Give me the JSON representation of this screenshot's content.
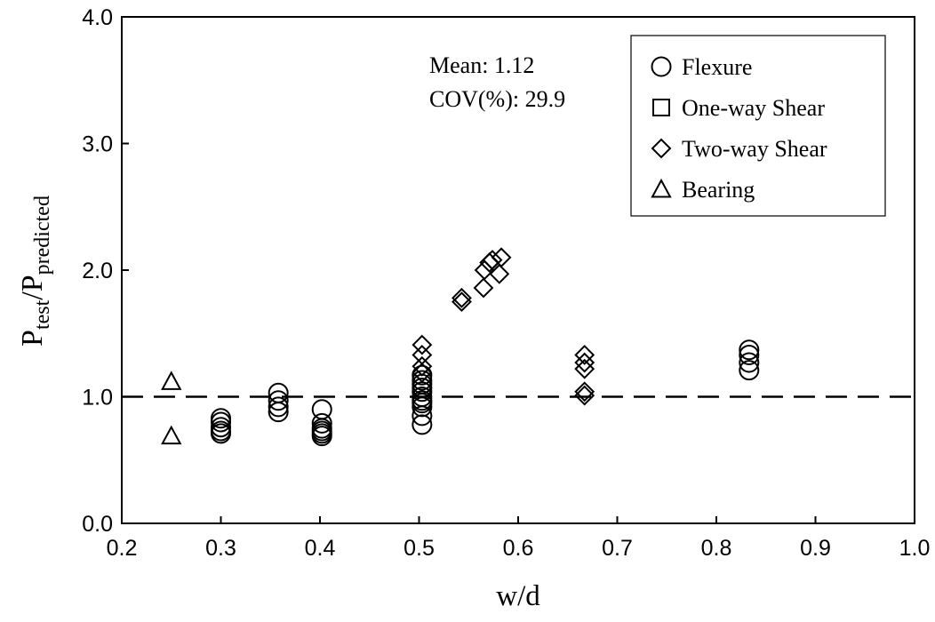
{
  "chart_data": {
    "type": "scatter",
    "xlabel": "w/d",
    "ylabel": {
      "main1": "P",
      "sub1": "test",
      "slash": "/P",
      "sub2": "predicted"
    },
    "xlim": [
      0.2,
      1.0
    ],
    "ylim": [
      0.0,
      4.0
    ],
    "x_ticks": [
      "0.2",
      "0.3",
      "0.4",
      "0.5",
      "0.6",
      "0.7",
      "0.8",
      "0.9",
      "1.0"
    ],
    "y_ticks": [
      "0.0",
      "1.0",
      "2.0",
      "3.0",
      "4.0"
    ],
    "grid": false,
    "reference_line": {
      "y": 1.0,
      "style": "dashed"
    },
    "annotations": {
      "mean": "Mean: 1.12",
      "cov": "COV(%): 29.9"
    },
    "legend": {
      "placement": "top-right",
      "entries": [
        {
          "label": "Flexure",
          "marker": "circle"
        },
        {
          "label": "One-way Shear",
          "marker": "square"
        },
        {
          "label": "Two-way Shear",
          "marker": "diamond"
        },
        {
          "label": "Bearing",
          "marker": "triangle"
        }
      ]
    },
    "series": [
      {
        "name": "Flexure",
        "marker": "circle",
        "points": [
          [
            0.3,
            0.83
          ],
          [
            0.3,
            0.8
          ],
          [
            0.3,
            0.76
          ],
          [
            0.3,
            0.73
          ],
          [
            0.3,
            0.71
          ],
          [
            0.358,
            1.03
          ],
          [
            0.358,
            0.97
          ],
          [
            0.358,
            0.92
          ],
          [
            0.358,
            0.88
          ],
          [
            0.402,
            0.9
          ],
          [
            0.402,
            0.79
          ],
          [
            0.402,
            0.75
          ],
          [
            0.402,
            0.73
          ],
          [
            0.402,
            0.71
          ],
          [
            0.402,
            0.69
          ],
          [
            0.503,
            1.17
          ],
          [
            0.503,
            1.13
          ],
          [
            0.503,
            1.1
          ],
          [
            0.503,
            1.07
          ],
          [
            0.503,
            1.04
          ],
          [
            0.503,
            1.0
          ],
          [
            0.503,
            0.97
          ],
          [
            0.503,
            0.95
          ],
          [
            0.503,
            0.92
          ],
          [
            0.503,
            0.85
          ],
          [
            0.503,
            0.78
          ],
          [
            0.833,
            1.37
          ],
          [
            0.833,
            1.33
          ],
          [
            0.833,
            1.27
          ],
          [
            0.833,
            1.21
          ]
        ]
      },
      {
        "name": "One-way Shear",
        "marker": "square",
        "points": []
      },
      {
        "name": "Two-way Shear",
        "marker": "diamond",
        "points": [
          [
            0.503,
            1.41
          ],
          [
            0.503,
            1.33
          ],
          [
            0.503,
            1.24
          ],
          [
            0.503,
            1.19
          ],
          [
            0.543,
            1.78
          ],
          [
            0.543,
            1.75
          ],
          [
            0.565,
            1.86
          ],
          [
            0.566,
            2.0
          ],
          [
            0.571,
            2.06
          ],
          [
            0.574,
            2.08
          ],
          [
            0.581,
            1.97
          ],
          [
            0.583,
            2.1
          ],
          [
            0.667,
            1.33
          ],
          [
            0.667,
            1.27
          ],
          [
            0.667,
            1.22
          ],
          [
            0.667,
            1.04
          ],
          [
            0.667,
            1.01
          ]
        ]
      },
      {
        "name": "Bearing",
        "marker": "triangle",
        "points": [
          [
            0.25,
            1.12
          ],
          [
            0.25,
            0.69
          ]
        ]
      }
    ]
  }
}
